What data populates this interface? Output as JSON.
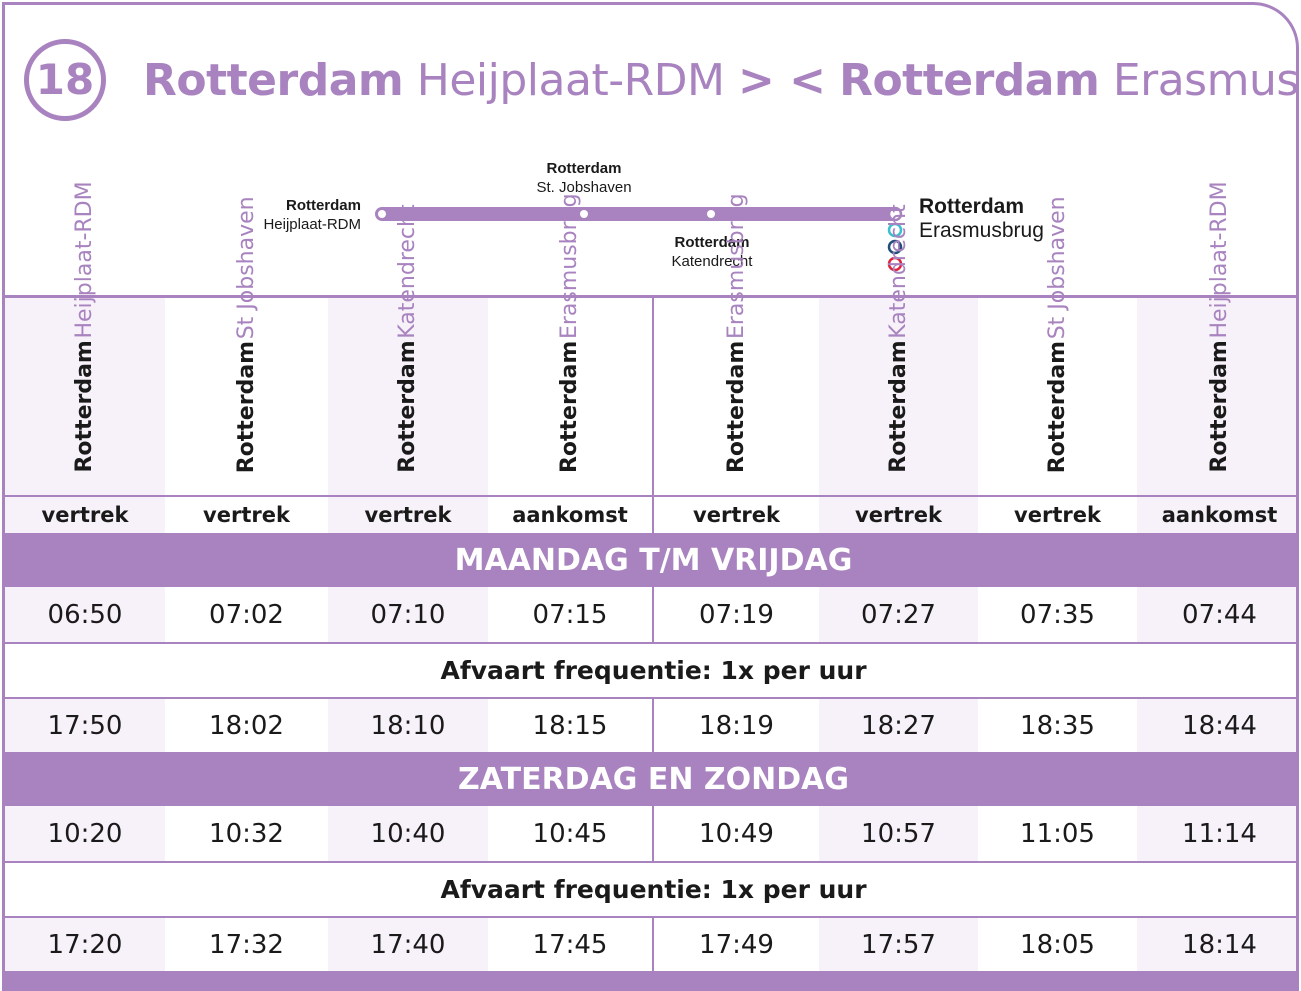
{
  "header": {
    "line_number": "18",
    "title_part1_bold": "Rotterdam",
    "title_part1": "Heijplaat-RDM",
    "title_arrows": "> <",
    "title_part2_bold": "Rotterdam",
    "title_part2": "Erasmusbrug"
  },
  "map": {
    "stops": [
      {
        "city": "Rotterdam",
        "place": "Heijplaat-RDM"
      },
      {
        "city": "Rotterdam",
        "place": "St. Jobshaven"
      },
      {
        "city": "Rotterdam",
        "place": "Katendrecht"
      },
      {
        "city": "Rotterdam",
        "place": "Erasmusbrug"
      }
    ],
    "colors": {
      "line": "#a883bf",
      "transfer_1": "#3bbfd0",
      "transfer_2": "#1f4e79",
      "transfer_3": "#e0223a"
    }
  },
  "columns": [
    {
      "city": "Rotterdam",
      "place": "Heijplaat-RDM",
      "type": "vertrek"
    },
    {
      "city": "Rotterdam",
      "place": "St Jobshaven",
      "type": "vertrek"
    },
    {
      "city": "Rotterdam",
      "place": "Katendrecht",
      "type": "vertrek"
    },
    {
      "city": "Rotterdam",
      "place": "Erasmusbrug",
      "type": "aankomst"
    },
    {
      "city": "Rotterdam",
      "place": "Erasmusbrug",
      "type": "vertrek"
    },
    {
      "city": "Rotterdam",
      "place": "Katendrecht",
      "type": "vertrek"
    },
    {
      "city": "Rotterdam",
      "place": "St Jobshaven",
      "type": "vertrek"
    },
    {
      "city": "Rotterdam",
      "place": "Heijplaat-RDM",
      "type": "aankomst"
    }
  ],
  "sections": [
    {
      "title": "MAANDAG T/M VRIJDAG",
      "first": [
        "06:50",
        "07:02",
        "07:10",
        "07:15",
        "07:19",
        "07:27",
        "07:35",
        "07:44"
      ],
      "frequency": "Afvaart frequentie: 1x per uur",
      "last": [
        "17:50",
        "18:02",
        "18:10",
        "18:15",
        "18:19",
        "18:27",
        "18:35",
        "18:44"
      ]
    },
    {
      "title": "ZATERDAG EN ZONDAG",
      "first": [
        "10:20",
        "10:32",
        "10:40",
        "10:45",
        "10:49",
        "10:57",
        "11:05",
        "11:14"
      ],
      "frequency": "Afvaart frequentie: 1x per uur",
      "last": [
        "17:20",
        "17:32",
        "17:40",
        "17:45",
        "17:49",
        "17:57",
        "18:05",
        "18:14"
      ]
    }
  ],
  "theme": {
    "accent": "#a883bf",
    "shade": "#f7f1f9"
  }
}
